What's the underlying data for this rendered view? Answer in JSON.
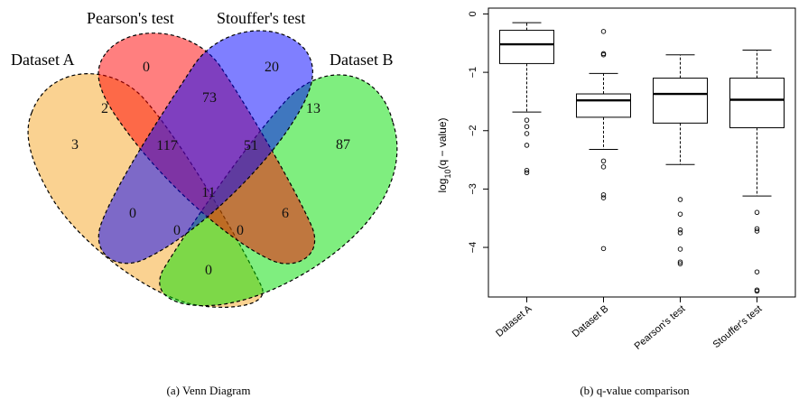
{
  "venn": {
    "caption": "(a)  Venn Diagram",
    "sets": [
      {
        "name": "Dataset A",
        "color": "#F5A623"
      },
      {
        "name": "Pearson's test",
        "color": "#FF0000"
      },
      {
        "name": "Stouffer's test",
        "color": "#0000FF"
      },
      {
        "name": "Dataset B",
        "color": "#00DD00"
      }
    ],
    "regions": [
      {
        "sets": [
          "Dataset A"
        ],
        "count": "3"
      },
      {
        "sets": [
          "Pearson's test"
        ],
        "count": "0"
      },
      {
        "sets": [
          "Stouffer's test"
        ],
        "count": "20"
      },
      {
        "sets": [
          "Dataset B"
        ],
        "count": "87"
      },
      {
        "sets": [
          "Dataset A",
          "Pearson's test"
        ],
        "count": "2"
      },
      {
        "sets": [
          "Pearson's test",
          "Stouffer's test"
        ],
        "count": "73"
      },
      {
        "sets": [
          "Stouffer's test",
          "Dataset B"
        ],
        "count": "13"
      },
      {
        "sets": [
          "Dataset A",
          "Pearson's test",
          "Stouffer's test"
        ],
        "count": "117"
      },
      {
        "sets": [
          "Pearson's test",
          "Stouffer's test",
          "Dataset B"
        ],
        "count": "51"
      },
      {
        "sets": [
          "Dataset A",
          "Pearson's test",
          "Stouffer's test",
          "Dataset B"
        ],
        "count": "11"
      },
      {
        "sets": [
          "Dataset A",
          "Stouffer's test"
        ],
        "count": "0"
      },
      {
        "sets": [
          "Pearson's test",
          "Dataset B"
        ],
        "count": "6"
      },
      {
        "sets": [
          "Dataset A",
          "Stouffer's test",
          "Dataset B"
        ],
        "count": "0"
      },
      {
        "sets": [
          "Dataset A",
          "Pearson's test",
          "Dataset B"
        ],
        "count": "0"
      },
      {
        "sets": [
          "Dataset A",
          "Dataset B"
        ],
        "count": "0"
      }
    ]
  },
  "chart_data": {
    "type": "box",
    "caption": "(b)  q-value comparison",
    "ylabel_main": "log",
    "ylabel_sub": "10",
    "ylabel_rest": "(q − value)",
    "ylim": [
      -4.85,
      0.1
    ],
    "yticks": [
      0,
      -1,
      -2,
      -3,
      -4
    ],
    "ytick_labels": [
      "0",
      "−1",
      "−2",
      "−3",
      "−4"
    ],
    "categories": [
      "Dataset A",
      "Dataset B",
      "Pearson's test",
      "Stouffer's test"
    ],
    "boxes": [
      {
        "name": "Dataset A",
        "q1": -0.85,
        "median": -0.52,
        "q3": -0.28,
        "whisker_low": -1.68,
        "whisker_high": -0.15,
        "outliers": [
          -1.82,
          -1.93,
          -2.05,
          -2.25,
          -2.68,
          -2.72
        ]
      },
      {
        "name": "Dataset B",
        "q1": -1.77,
        "median": -1.48,
        "q3": -1.37,
        "whisker_low": -2.32,
        "whisker_high": -1.02,
        "outliers": [
          -0.3,
          -0.68,
          -0.7,
          -2.52,
          -2.62,
          -3.1,
          -3.15,
          -4.02
        ]
      },
      {
        "name": "Pearson's test",
        "q1": -1.87,
        "median": -1.37,
        "q3": -1.1,
        "whisker_low": -2.58,
        "whisker_high": -0.7,
        "outliers": [
          -3.18,
          -3.43,
          -3.7,
          -3.75,
          -4.03,
          -4.25,
          -4.28
        ]
      },
      {
        "name": "Stouffer's test",
        "q1": -1.95,
        "median": -1.47,
        "q3": -1.1,
        "whisker_low": -3.12,
        "whisker_high": -0.62,
        "outliers": [
          -3.4,
          -3.68,
          -3.72,
          -4.42,
          -4.73,
          -4.75
        ]
      }
    ]
  }
}
